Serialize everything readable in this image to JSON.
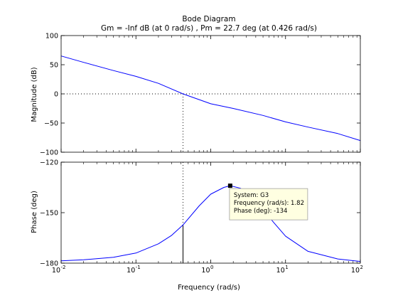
{
  "chart_data": [
    {
      "type": "line",
      "title": "Bode Diagram",
      "subtitle": "Gm = -Inf dB (at 0 rad/s) ,  Pm = 22.7 deg (at 0.426 rad/s)",
      "ylabel": "Magnitude (dB)",
      "xlabel": "",
      "xscale": "log",
      "xlim": [
        0.01,
        100
      ],
      "ylim": [
        -100,
        100
      ],
      "yticks": [
        100,
        50,
        0,
        -50,
        -100
      ],
      "ytick_labels": [
        "100",
        "50",
        "0",
        "−50",
        "−100"
      ],
      "reference_lines": {
        "horizontal": 0,
        "vertical_x": 0.426
      },
      "series": [
        {
          "color": "#0000ff",
          "x": [
            0.01,
            0.02,
            0.05,
            0.1,
            0.2,
            0.426,
            1,
            2,
            5,
            10,
            20,
            50,
            100
          ],
          "y": [
            65,
            54,
            40,
            30,
            18,
            0,
            -17,
            -25,
            -37,
            -48,
            -57,
            -68,
            -80
          ]
        }
      ]
    },
    {
      "type": "line",
      "xlabel": "Frequency (rad/s)",
      "ylabel": "Phase (deg)",
      "xscale": "log",
      "xlim": [
        0.01,
        100
      ],
      "ylim": [
        -180,
        -120
      ],
      "yticks": [
        -120,
        -150,
        -180
      ],
      "ytick_labels": [
        "−120",
        "−150",
        "−180"
      ],
      "xtick_base": "10",
      "xtick_exponents": [
        "-2",
        "-1",
        "0",
        "1",
        "2"
      ],
      "reference_lines": {
        "vertical_x": 0.426,
        "phase_margin_at": -157.3
      },
      "series": [
        {
          "color": "#0000ff",
          "x": [
            0.01,
            0.02,
            0.05,
            0.1,
            0.2,
            0.3,
            0.426,
            0.7,
            1,
            1.5,
            1.82,
            2.5,
            4,
            7,
            10,
            20,
            50,
            100
          ],
          "y": [
            -178.6,
            -178,
            -176.5,
            -174,
            -168.5,
            -163.5,
            -157.3,
            -146,
            -139,
            -135,
            -134,
            -135.5,
            -143,
            -156,
            -164,
            -173,
            -177.5,
            -179
          ]
        }
      ],
      "datatip": {
        "x": 1.82,
        "y": -134,
        "lines": [
          "System: G3",
          "Frequency (rad/s): 1.82",
          "Phase (deg): -134"
        ]
      }
    }
  ]
}
